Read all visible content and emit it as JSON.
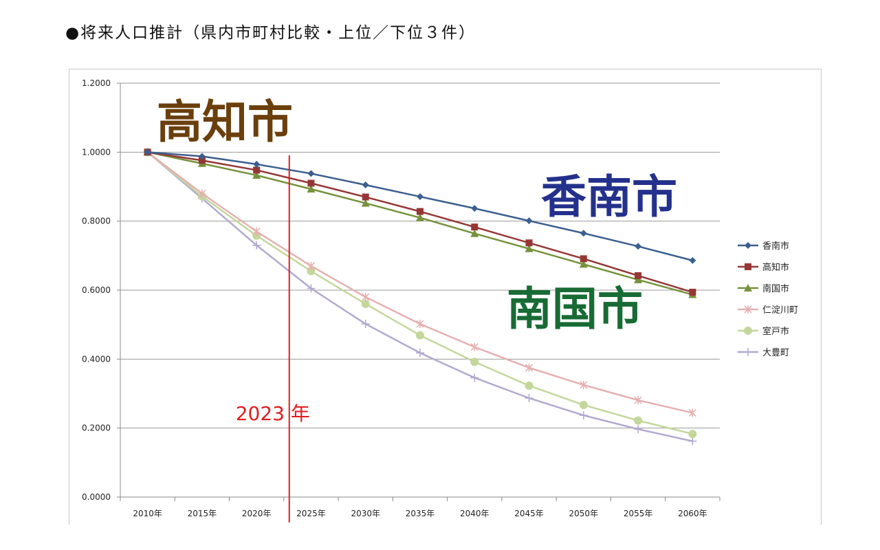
{
  "page_title": "●将来人口推計（県内市町村比較・上位／下位３件）",
  "annotations": {
    "kochi": {
      "text": "高知市",
      "color": "#6b3f0c"
    },
    "konan": {
      "text": "香南市",
      "color": "#24318c"
    },
    "nankoku": {
      "text": "南国市",
      "color": "#186b34"
    },
    "year_marker": {
      "text": "2023 年",
      "color": "#e11d1d",
      "x": 2023
    }
  },
  "chart_data": {
    "type": "line",
    "title": "",
    "xlabel": "",
    "ylabel": "",
    "x": [
      "2010年",
      "2015年",
      "2020年",
      "2025年",
      "2030年",
      "2035年",
      "2040年",
      "2045年",
      "2050年",
      "2055年",
      "2060年"
    ],
    "ylim": [
      0,
      1.2
    ],
    "yticks": [
      "0.0000",
      "0.2000",
      "0.4000",
      "0.6000",
      "0.8000",
      "1.0000",
      "1.2000"
    ],
    "grid": true,
    "legend_position": "right",
    "series": [
      {
        "name": "香南市",
        "color": "#3b5f8f",
        "marker": "diamond",
        "values": [
          1.0,
          0.988,
          0.965,
          0.938,
          0.905,
          0.871,
          0.837,
          0.801,
          0.765,
          0.727,
          0.686
        ]
      },
      {
        "name": "高知市",
        "color": "#953735",
        "marker": "square",
        "values": [
          1.0,
          0.976,
          0.948,
          0.91,
          0.87,
          0.828,
          0.783,
          0.737,
          0.691,
          0.642,
          0.594
        ]
      },
      {
        "name": "南国市",
        "color": "#76923c",
        "marker": "triangle",
        "values": [
          1.0,
          0.967,
          0.933,
          0.893,
          0.852,
          0.81,
          0.764,
          0.72,
          0.675,
          0.63,
          0.587
        ]
      },
      {
        "name": "仁淀川町",
        "color": "#e6b0b0",
        "marker": "x",
        "values": [
          1.0,
          0.88,
          0.77,
          0.67,
          0.58,
          0.502,
          0.435,
          0.375,
          0.325,
          0.281,
          0.244
        ]
      },
      {
        "name": "室戸市",
        "color": "#c4d79b",
        "marker": "circle",
        "values": [
          1.0,
          0.872,
          0.758,
          0.655,
          0.56,
          0.469,
          0.392,
          0.323,
          0.267,
          0.222,
          0.183
        ]
      },
      {
        "name": "大豊町",
        "color": "#b3a9cf",
        "marker": "plus",
        "values": [
          1.0,
          0.866,
          0.73,
          0.605,
          0.502,
          0.418,
          0.346,
          0.287,
          0.237,
          0.197,
          0.162
        ]
      }
    ]
  }
}
